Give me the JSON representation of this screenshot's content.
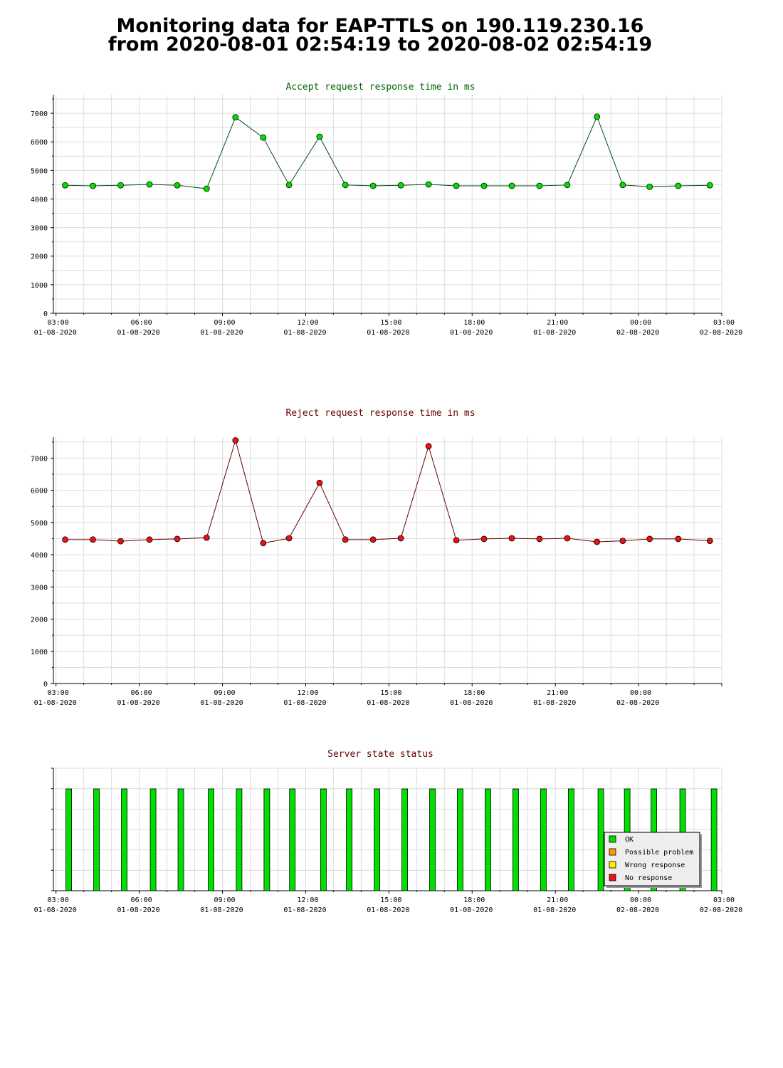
{
  "page": {
    "title_line1": "Monitoring data for EAP-TTLS on 190.119.230.16",
    "title_line2": "from 2020-08-01 02:54:19 to 2020-08-02 02:54:19"
  },
  "colors": {
    "accept_line": "#004d1a",
    "accept_marker": "#00e000",
    "reject_line": "#660000",
    "reject_marker": "#ee1111",
    "status_bar": "#00e000",
    "ok": "#00e000",
    "possible_problem": "#ff9900",
    "wrong_response": "#ffee00",
    "no_response": "#ee1111"
  },
  "chart_data": [
    {
      "type": "line",
      "title": "Accept request response time in ms",
      "xlabel": "",
      "ylabel": "",
      "x_range_hours": [
        2.9053,
        27.0
      ],
      "ylim": [
        0,
        7650
      ],
      "y_ticks": [
        0,
        1000,
        2000,
        3000,
        4000,
        5000,
        6000,
        7000
      ],
      "x_ticks": [
        {
          "hour": 3,
          "time": "03:00",
          "date": "01-08-2020"
        },
        {
          "hour": 6,
          "time": "06:00",
          "date": "01-08-2020"
        },
        {
          "hour": 9,
          "time": "09:00",
          "date": "01-08-2020"
        },
        {
          "hour": 12,
          "time": "12:00",
          "date": "01-08-2020"
        },
        {
          "hour": 15,
          "time": "15:00",
          "date": "01-08-2020"
        },
        {
          "hour": 18,
          "time": "18:00",
          "date": "01-08-2020"
        },
        {
          "hour": 21,
          "time": "21:00",
          "date": "01-08-2020"
        },
        {
          "hour": 24,
          "time": "00:00",
          "date": "02-08-2020"
        },
        {
          "hour": 27,
          "time": "03:00",
          "date": "02-08-2020"
        }
      ],
      "grid": true,
      "x": [
        3.33,
        4.33,
        5.33,
        6.37,
        7.37,
        8.43,
        9.47,
        10.47,
        11.4,
        12.5,
        13.43,
        14.43,
        15.43,
        16.43,
        17.43,
        18.43,
        19.43,
        20.43,
        21.43,
        22.5,
        23.43,
        24.4,
        25.43,
        26.57
      ],
      "series": [
        {
          "values": [
            4480,
            4460,
            4480,
            4510,
            4480,
            4360,
            6860,
            6150,
            4490,
            6180,
            4490,
            4460,
            4480,
            4510,
            4460,
            4460,
            4460,
            4460,
            4490,
            6880,
            4490,
            4430,
            4460,
            4480
          ]
        }
      ]
    },
    {
      "type": "line",
      "title": "Reject request response time in ms",
      "xlabel": "",
      "ylabel": "",
      "x_range_hours": [
        2.9053,
        27.0
      ],
      "ylim": [
        0,
        7650
      ],
      "y_ticks": [
        0,
        1000,
        2000,
        3000,
        4000,
        5000,
        6000,
        7000
      ],
      "x_ticks": [
        {
          "hour": 3,
          "time": "03:00",
          "date": "01-08-2020"
        },
        {
          "hour": 6,
          "time": "06:00",
          "date": "01-08-2020"
        },
        {
          "hour": 9,
          "time": "09:00",
          "date": "01-08-2020"
        },
        {
          "hour": 12,
          "time": "12:00",
          "date": "01-08-2020"
        },
        {
          "hour": 15,
          "time": "15:00",
          "date": "01-08-2020"
        },
        {
          "hour": 18,
          "time": "18:00",
          "date": "01-08-2020"
        },
        {
          "hour": 21,
          "time": "21:00",
          "date": "01-08-2020"
        },
        {
          "hour": 24,
          "time": "00:00",
          "date": "02-08-2020"
        }
      ],
      "grid": true,
      "x": [
        3.33,
        4.33,
        5.33,
        6.37,
        7.37,
        8.43,
        9.47,
        10.47,
        11.4,
        12.5,
        13.43,
        14.43,
        15.43,
        16.43,
        17.43,
        18.43,
        19.43,
        20.43,
        21.43,
        22.5,
        23.43,
        24.4,
        25.43,
        26.57
      ],
      "series": [
        {
          "values": [
            4470,
            4470,
            4420,
            4470,
            4490,
            4530,
            7550,
            4360,
            4510,
            6230,
            4470,
            4470,
            4510,
            7370,
            4450,
            4490,
            4510,
            4490,
            4510,
            4400,
            4430,
            4490,
            4490,
            4430
          ]
        }
      ]
    },
    {
      "type": "bar",
      "title": "Server state status",
      "xlabel": "",
      "ylabel": "",
      "x_range_hours": [
        2.9053,
        27.0
      ],
      "x_ticks": [
        {
          "hour": 3,
          "time": "03:00",
          "date": "01-08-2020"
        },
        {
          "hour": 6,
          "time": "06:00",
          "date": "01-08-2020"
        },
        {
          "hour": 9,
          "time": "09:00",
          "date": "01-08-2020"
        },
        {
          "hour": 12,
          "time": "12:00",
          "date": "01-08-2020"
        },
        {
          "hour": 15,
          "time": "15:00",
          "date": "01-08-2020"
        },
        {
          "hour": 18,
          "time": "18:00",
          "date": "01-08-2020"
        },
        {
          "hour": 21,
          "time": "21:00",
          "date": "01-08-2020"
        },
        {
          "hour": 24,
          "time": "00:00",
          "date": "02-08-2020"
        },
        {
          "hour": 27,
          "time": "03:00",
          "date": "02-08-2020"
        }
      ],
      "grid": true,
      "x": [
        3.46,
        4.46,
        5.46,
        6.5,
        7.5,
        8.59,
        9.6,
        10.6,
        11.52,
        12.64,
        13.57,
        14.57,
        15.57,
        16.57,
        17.57,
        18.57,
        19.57,
        20.57,
        21.57,
        22.64,
        23.59,
        24.55,
        25.59,
        26.72
      ],
      "series": [
        {
          "name": "OK",
          "values": [
            1,
            1,
            1,
            1,
            1,
            1,
            1,
            1,
            1,
            1,
            1,
            1,
            1,
            1,
            1,
            1,
            1,
            1,
            1,
            1,
            1,
            1,
            1,
            1
          ]
        }
      ],
      "legend": {
        "placement": "bottom-right",
        "entries": [
          {
            "label": "OK",
            "color_key": "ok"
          },
          {
            "label": "Possible problem",
            "color_key": "possible_problem"
          },
          {
            "label": "Wrong response",
            "color_key": "wrong_response"
          },
          {
            "label": "No response",
            "color_key": "no_response"
          }
        ]
      }
    }
  ]
}
